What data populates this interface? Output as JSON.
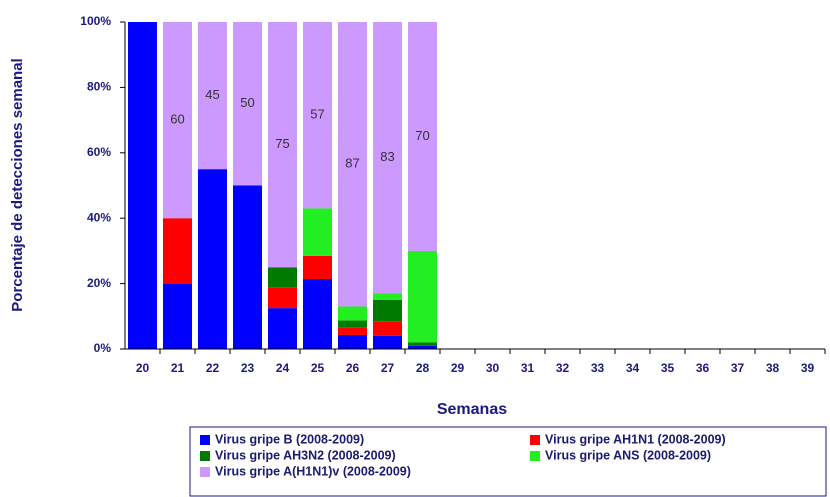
{
  "chart_data": {
    "type": "stacked_bar",
    "xlabel": "Semanas",
    "ylabel": "Porcentaje de detecciones semanal",
    "categories": [
      "20",
      "21",
      "22",
      "23",
      "24",
      "25",
      "26",
      "27",
      "28",
      "29",
      "30",
      "31",
      "32",
      "33",
      "34",
      "35",
      "36",
      "37",
      "38",
      "39"
    ],
    "series": [
      {
        "name": "Virus gripe B (2008-2009)",
        "color": "#0000ff",
        "values": [
          100,
          20,
          55,
          50,
          12.5,
          21.4,
          4.3,
          4,
          1,
          null,
          null,
          null,
          null,
          null,
          null,
          null,
          null,
          null,
          null,
          null
        ]
      },
      {
        "name": "Virus gripe AH1N1 (2008-2009)",
        "color": "#ff0000",
        "values": [
          0,
          20,
          0,
          0,
          6.25,
          7.1,
          2.2,
          4.5,
          0,
          null,
          null,
          null,
          null,
          null,
          null,
          null,
          null,
          null,
          null,
          null
        ]
      },
      {
        "name": "Virus gripe AH3N2 (2008-2009)",
        "color": "#007a00",
        "values": [
          0,
          0,
          0,
          0,
          6.25,
          0,
          2.2,
          6.5,
          1,
          null,
          null,
          null,
          null,
          null,
          null,
          null,
          null,
          null,
          null,
          null
        ]
      },
      {
        "name": "Virus gripe ANS (2008-2009)",
        "color": "#22ee22",
        "values": [
          0,
          0,
          0,
          0,
          0,
          14.5,
          4.3,
          2,
          28,
          null,
          null,
          null,
          null,
          null,
          null,
          null,
          null,
          null,
          null,
          null
        ]
      },
      {
        "name": "Virus gripe A(H1N1)v (2008-2009)",
        "color": "#cc99ff",
        "values": [
          null,
          60,
          45,
          50,
          75,
          57,
          87,
          83,
          70,
          null,
          null,
          null,
          null,
          null,
          null,
          null,
          null,
          null,
          null,
          null
        ],
        "data_labels": true
      }
    ],
    "ylim": [
      0,
      100
    ],
    "yticks": [
      {
        "value": 0,
        "label": "0%"
      },
      {
        "value": 20,
        "label": "20%"
      },
      {
        "value": 40,
        "label": "40%"
      },
      {
        "value": 60,
        "label": "60%"
      },
      {
        "value": 80,
        "label": "80%"
      },
      {
        "value": 100,
        "label": "100%"
      }
    ],
    "legend": "bottom"
  }
}
